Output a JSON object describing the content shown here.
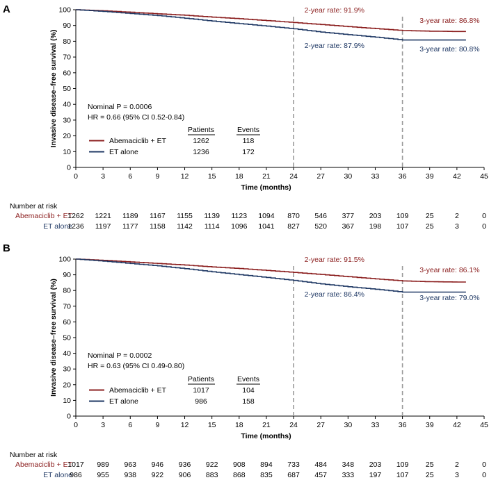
{
  "colors": {
    "abema": "#8b1e1e",
    "et": "#1f3864",
    "axis": "#000000",
    "refline": "#9a9a9a"
  },
  "chart_data": [
    {
      "panel": "A",
      "type": "line",
      "xlabel": "Time (months)",
      "ylabel": "Invasive disease–free survival (%)",
      "xlim": [
        0,
        45
      ],
      "ylim": [
        0,
        100
      ],
      "xticks": [
        0,
        3,
        6,
        9,
        12,
        15,
        18,
        21,
        24,
        27,
        30,
        33,
        36,
        39,
        42,
        45
      ],
      "yticks": [
        0,
        10,
        20,
        30,
        40,
        50,
        60,
        70,
        80,
        90,
        100
      ],
      "reference_lines_x": [
        24,
        36
      ],
      "stat_text": [
        "Nominal P = 0.0006",
        "HR = 0.66 (95% CI 0.52-0.84)"
      ],
      "table_header": [
        "Patients",
        "Events"
      ],
      "series": [
        {
          "name": "Abemaciclib + ET",
          "color_key": "abema",
          "patients": "1262",
          "events": "118",
          "x": [
            0,
            3,
            6,
            9,
            12,
            15,
            18,
            21,
            24,
            27,
            30,
            33,
            36,
            39,
            42,
            43
          ],
          "y": [
            100,
            99.3,
            98.4,
            97.4,
            96.5,
            95.3,
            94.3,
            93.1,
            91.9,
            90.6,
            89.3,
            88.0,
            86.8,
            86.4,
            86.2,
            86.2
          ]
        },
        {
          "name": "ET alone",
          "color_key": "et",
          "patients": "1236",
          "events": "172",
          "x": [
            0,
            3,
            6,
            9,
            12,
            15,
            18,
            21,
            24,
            27,
            30,
            33,
            36,
            39,
            42,
            43
          ],
          "y": [
            100,
            98.9,
            97.6,
            96.3,
            94.6,
            92.8,
            91.2,
            89.6,
            87.9,
            85.8,
            84.2,
            82.6,
            80.8,
            80.8,
            80.8,
            80.8
          ]
        }
      ],
      "annotations": [
        {
          "text": "2-year rate: 91.9%",
          "color_key": "abema"
        },
        {
          "text": "3-year rate: 86.8%",
          "color_key": "abema"
        },
        {
          "text": "2-year rate: 87.9%",
          "color_key": "et"
        },
        {
          "text": "3-year rate: 80.8%",
          "color_key": "et"
        }
      ],
      "risk_table": {
        "title": "Number at risk",
        "rows": [
          {
            "label": "Abemaciclib + ET",
            "color_key": "abema",
            "values": [
              "1262",
              "1221",
              "1189",
              "1167",
              "1155",
              "1139",
              "1123",
              "1094",
              "870",
              "546",
              "377",
              "203",
              "109",
              "25",
              "2",
              "0"
            ]
          },
          {
            "label": "ET alone",
            "color_key": "et",
            "values": [
              "1236",
              "1197",
              "1177",
              "1158",
              "1142",
              "1114",
              "1096",
              "1041",
              "827",
              "520",
              "367",
              "198",
              "107",
              "25",
              "3",
              "0"
            ]
          }
        ]
      }
    },
    {
      "panel": "B",
      "type": "line",
      "xlabel": "Time (months)",
      "ylabel": "Invasive disease–free survival (%)",
      "xlim": [
        0,
        45
      ],
      "ylim": [
        0,
        100
      ],
      "xticks": [
        0,
        3,
        6,
        9,
        12,
        15,
        18,
        21,
        24,
        27,
        30,
        33,
        36,
        39,
        42,
        45
      ],
      "yticks": [
        0,
        10,
        20,
        30,
        40,
        50,
        60,
        70,
        80,
        90,
        100
      ],
      "reference_lines_x": [
        24,
        36
      ],
      "stat_text": [
        "Nominal P = 0.0002",
        "HR = 0.63 (95% CI 0.49-0.80)"
      ],
      "table_header": [
        "Patients",
        "Events"
      ],
      "series": [
        {
          "name": "Abemaciclib + ET",
          "color_key": "abema",
          "patients": "1017",
          "events": "104",
          "x": [
            0,
            3,
            6,
            9,
            12,
            15,
            18,
            21,
            24,
            27,
            30,
            33,
            36,
            39,
            42,
            43
          ],
          "y": [
            100,
            99.2,
            98.2,
            97.2,
            96.2,
            95.0,
            94.0,
            92.8,
            91.5,
            90.2,
            88.8,
            87.4,
            86.1,
            85.6,
            85.4,
            85.4
          ]
        },
        {
          "name": "ET alone",
          "color_key": "et",
          "patients": "986",
          "events": "158",
          "x": [
            0,
            3,
            6,
            9,
            12,
            15,
            18,
            21,
            24,
            27,
            30,
            33,
            36,
            39,
            42,
            43
          ],
          "y": [
            100,
            98.7,
            97.2,
            95.7,
            93.9,
            91.9,
            90.1,
            88.3,
            86.4,
            84.2,
            82.4,
            80.8,
            79.0,
            79.0,
            79.0,
            79.0
          ]
        }
      ],
      "annotations": [
        {
          "text": "2-year rate: 91.5%",
          "color_key": "abema"
        },
        {
          "text": "3-year rate: 86.1%",
          "color_key": "abema"
        },
        {
          "text": "2-year rate: 86.4%",
          "color_key": "et"
        },
        {
          "text": "3-year rate: 79.0%",
          "color_key": "et"
        }
      ],
      "risk_table": {
        "title": "Number at risk",
        "rows": [
          {
            "label": "Abemaciclib + ET",
            "color_key": "abema",
            "values": [
              "1017",
              "989",
              "963",
              "946",
              "936",
              "922",
              "908",
              "894",
              "733",
              "484",
              "348",
              "203",
              "109",
              "25",
              "2",
              "0"
            ]
          },
          {
            "label": "ET alone",
            "color_key": "et",
            "values": [
              "986",
              "955",
              "938",
              "922",
              "906",
              "883",
              "868",
              "835",
              "687",
              "457",
              "333",
              "197",
              "107",
              "25",
              "3",
              "0"
            ]
          }
        ]
      }
    }
  ]
}
